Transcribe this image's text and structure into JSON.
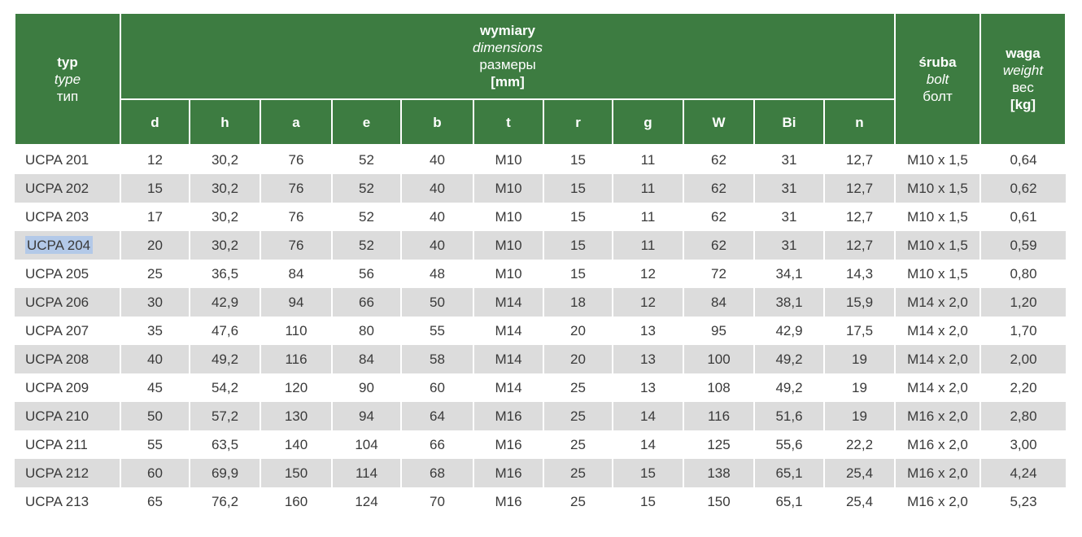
{
  "header": {
    "type_col": {
      "pl": "typ",
      "en": "type",
      "ru": "тип"
    },
    "dimensions": {
      "pl": "wymiary",
      "en": "dimensions",
      "ru": "размеры",
      "unit": "[mm]"
    },
    "bolt": {
      "pl": "śruba",
      "en": "bolt",
      "ru": "болт"
    },
    "weight": {
      "pl": "waga",
      "en": "weight",
      "ru": "вес",
      "unit": "[kg]"
    }
  },
  "selection": {
    "highlighted_text": "UCPA 204"
  },
  "colors": {
    "header_green": "#3d7c41",
    "grid_white": "#ffffff",
    "row_alt_gray": "#dcdcdc",
    "data_text": "#3a3a3a",
    "selection_blue": "#b3c9e8"
  },
  "chart_data": {
    "type": "table",
    "title": "wymiary / dimensions / размеры [mm]",
    "dimension_letters": [
      "d",
      "h",
      "a",
      "e",
      "b",
      "t",
      "r",
      "g",
      "W",
      "Bi",
      "n"
    ],
    "columns": [
      "typ / type / тип",
      "d",
      "h",
      "a",
      "e",
      "b",
      "t",
      "r",
      "g",
      "W",
      "Bi",
      "n",
      "śruba / bolt / болт",
      "waga / weight / вес [kg]"
    ],
    "rows": [
      [
        "UCPA 201",
        "12",
        "30,2",
        "76",
        "52",
        "40",
        "M10",
        "15",
        "11",
        "62",
        "31",
        "12,7",
        "M10 x 1,5",
        "0,64"
      ],
      [
        "UCPA 202",
        "15",
        "30,2",
        "76",
        "52",
        "40",
        "M10",
        "15",
        "11",
        "62",
        "31",
        "12,7",
        "M10 x 1,5",
        "0,62"
      ],
      [
        "UCPA 203",
        "17",
        "30,2",
        "76",
        "52",
        "40",
        "M10",
        "15",
        "11",
        "62",
        "31",
        "12,7",
        "M10 x 1,5",
        "0,61"
      ],
      [
        "UCPA 204",
        "20",
        "30,2",
        "76",
        "52",
        "40",
        "M10",
        "15",
        "11",
        "62",
        "31",
        "12,7",
        "M10 x 1,5",
        "0,59"
      ],
      [
        "UCPA 205",
        "25",
        "36,5",
        "84",
        "56",
        "48",
        "M10",
        "15",
        "12",
        "72",
        "34,1",
        "14,3",
        "M10 x 1,5",
        "0,80"
      ],
      [
        "UCPA 206",
        "30",
        "42,9",
        "94",
        "66",
        "50",
        "M14",
        "18",
        "12",
        "84",
        "38,1",
        "15,9",
        "M14 x 2,0",
        "1,20"
      ],
      [
        "UCPA 207",
        "35",
        "47,6",
        "110",
        "80",
        "55",
        "M14",
        "20",
        "13",
        "95",
        "42,9",
        "17,5",
        "M14 x 2,0",
        "1,70"
      ],
      [
        "UCPA 208",
        "40",
        "49,2",
        "116",
        "84",
        "58",
        "M14",
        "20",
        "13",
        "100",
        "49,2",
        "19",
        "M14 x 2,0",
        "2,00"
      ],
      [
        "UCPA 209",
        "45",
        "54,2",
        "120",
        "90",
        "60",
        "M14",
        "25",
        "13",
        "108",
        "49,2",
        "19",
        "M14 x 2,0",
        "2,20"
      ],
      [
        "UCPA 210",
        "50",
        "57,2",
        "130",
        "94",
        "64",
        "M16",
        "25",
        "14",
        "116",
        "51,6",
        "19",
        "M16 x 2,0",
        "2,80"
      ],
      [
        "UCPA 211",
        "55",
        "63,5",
        "140",
        "104",
        "66",
        "M16",
        "25",
        "14",
        "125",
        "55,6",
        "22,2",
        "M16 x 2,0",
        "3,00"
      ],
      [
        "UCPA 212",
        "60",
        "69,9",
        "150",
        "114",
        "68",
        "M16",
        "25",
        "15",
        "138",
        "65,1",
        "25,4",
        "M16 x 2,0",
        "4,24"
      ],
      [
        "UCPA 213",
        "65",
        "76,2",
        "160",
        "124",
        "70",
        "M16",
        "25",
        "15",
        "150",
        "65,1",
        "25,4",
        "M16 x 2,0",
        "5,23"
      ]
    ]
  }
}
